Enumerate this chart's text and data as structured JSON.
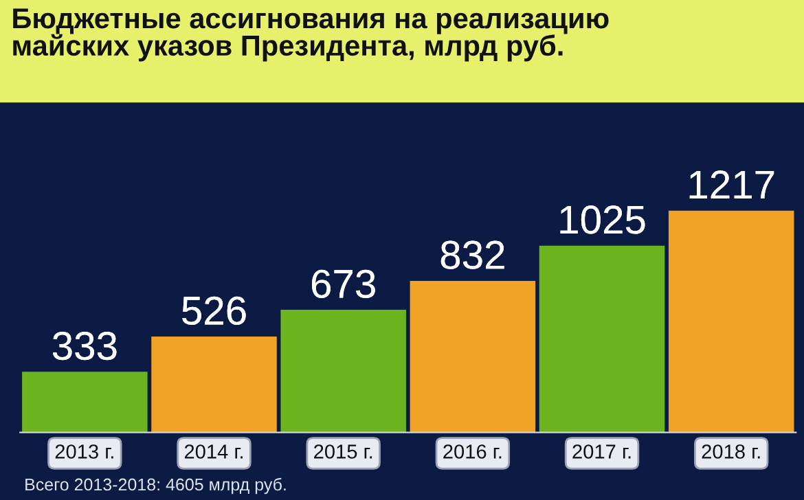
{
  "chart_data": {
    "type": "bar",
    "title": "Бюджетные ассигнования на реализацию\nмайских указов Президента, млрд руб.",
    "categories": [
      "2013 г.",
      "2014 г.",
      "2015 г.",
      "2016 г.",
      "2017 г.",
      "2018 г."
    ],
    "values": [
      333,
      526,
      673,
      832,
      1025,
      1217
    ],
    "colors": [
      "#6cb41e",
      "#f0a324",
      "#6cb41e",
      "#f0a324",
      "#6cb41e",
      "#f0a324"
    ],
    "data_labels": true,
    "annotations": [
      "Всего 2013-2018: 4605 млрд руб."
    ]
  }
}
